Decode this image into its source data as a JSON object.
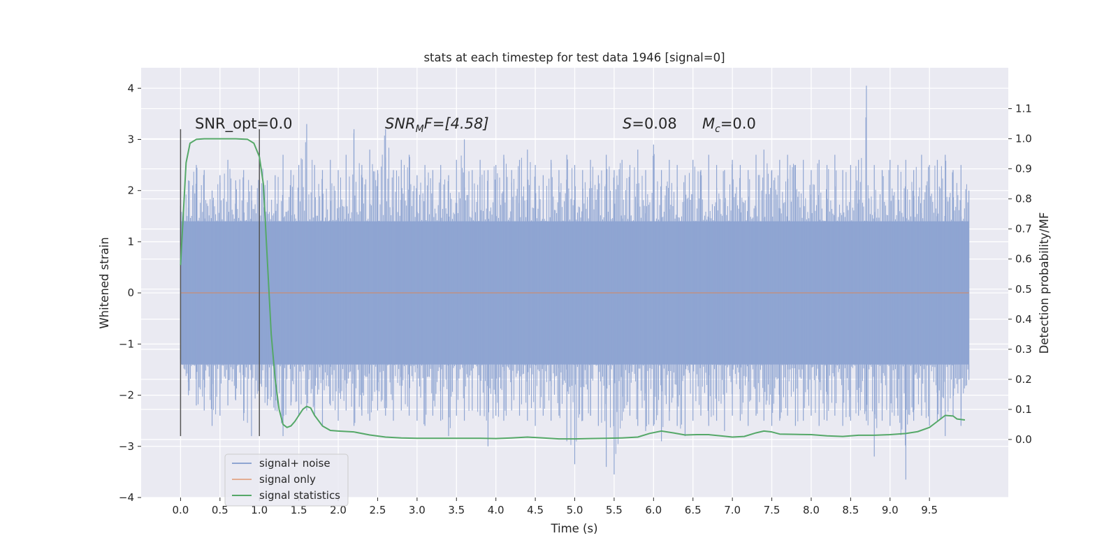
{
  "chart_data": {
    "type": "line",
    "title": "stats at each timestep for test data 1946 [signal=0]",
    "xlabel": "Time (s)",
    "ylabel": "Whitened strain",
    "ylabel_right": "Detection probability/MF",
    "xlim": [
      -0.5,
      10.5
    ],
    "ylim": [
      -4.0,
      4.4
    ],
    "ylim_right": [
      -0.193,
      1.236
    ],
    "x_ticks": [
      "0.0",
      "0.5",
      "1.0",
      "1.5",
      "2.0",
      "2.5",
      "3.0",
      "3.5",
      "4.0",
      "4.5",
      "5.0",
      "5.5",
      "6.0",
      "6.5",
      "7.0",
      "7.5",
      "8.0",
      "8.5",
      "9.0",
      "9.5"
    ],
    "y_ticks": [
      "4",
      "3",
      "2",
      "1",
      "0",
      "−1",
      "−2",
      "−3",
      "−4"
    ],
    "y_ticks_right": [
      "1.1",
      "1.0",
      "0.9",
      "0.8",
      "0.7",
      "0.6",
      "0.5",
      "0.4",
      "0.3",
      "0.2",
      "0.1",
      "0.0"
    ],
    "grid": true,
    "legend_position": "lower-left",
    "annotations": {
      "snr_opt": "SNR_opt=0.0",
      "snr_mf_main": "SNR",
      "snr_mf_sub": "M",
      "snr_mf_rest": "F=[4.58]",
      "s_main": "S",
      "s_rest": "=0.08",
      "mc_main": "M",
      "mc_sub": "c",
      "mc_rest": "=0.0"
    },
    "window_markers": [
      0.0,
      1.0
    ],
    "series": [
      {
        "name": "signal+ noise",
        "color": "#8fa5d2",
        "noise_band": [
          -1.4,
          1.4
        ],
        "x": [
          0.0,
          0.1,
          0.2,
          0.3,
          0.4,
          0.5,
          0.6,
          0.7,
          0.8,
          0.9,
          1.0,
          1.1,
          1.2,
          1.3,
          1.4,
          1.5,
          1.6,
          1.7,
          1.8,
          1.9,
          2.0,
          2.1,
          2.2,
          2.3,
          2.4,
          2.5,
          2.6,
          2.7,
          2.8,
          2.9,
          3.0,
          3.1,
          3.2,
          3.3,
          3.4,
          3.5,
          3.6,
          3.7,
          3.8,
          3.9,
          4.0,
          4.1,
          4.2,
          4.3,
          4.4,
          4.5,
          4.6,
          4.7,
          4.8,
          4.9,
          5.0,
          5.1,
          5.2,
          5.3,
          5.4,
          5.5,
          5.6,
          5.7,
          5.8,
          5.9,
          6.0,
          6.1,
          6.2,
          6.3,
          6.4,
          6.5,
          6.6,
          6.7,
          6.8,
          6.9,
          7.0,
          7.1,
          7.2,
          7.3,
          7.4,
          7.5,
          7.6,
          7.7,
          7.8,
          7.9,
          8.0,
          8.1,
          8.2,
          8.3,
          8.4,
          8.5,
          8.6,
          8.7,
          8.8,
          8.9,
          9.0,
          9.1,
          9.2,
          9.3,
          9.4,
          9.5,
          9.6,
          9.7,
          9.8,
          9.9,
          10.0
        ],
        "upper": [
          1.7,
          2.2,
          2.5,
          2.4,
          2.0,
          2.3,
          2.6,
          2.2,
          2.4,
          2.1,
          2.9,
          2.2,
          2.3,
          2.7,
          2.4,
          2.5,
          3.3,
          2.5,
          2.4,
          2.6,
          2.4,
          2.7,
          3.2,
          2.5,
          2.8,
          2.4,
          3.2,
          2.4,
          2.6,
          2.7,
          2.3,
          2.5,
          2.4,
          2.5,
          2.3,
          2.6,
          3.0,
          2.4,
          2.6,
          2.4,
          2.5,
          2.7,
          2.4,
          2.6,
          2.8,
          2.5,
          2.3,
          2.6,
          2.4,
          2.7,
          2.5,
          2.4,
          2.6,
          2.3,
          2.7,
          2.4,
          2.6,
          2.5,
          2.8,
          2.4,
          2.9,
          2.4,
          2.6,
          2.5,
          2.3,
          2.6,
          2.4,
          2.7,
          2.5,
          2.4,
          2.6,
          2.5,
          2.4,
          2.7,
          2.8,
          2.4,
          2.6,
          2.7,
          2.5,
          2.6,
          2.4,
          2.6,
          2.5,
          2.7,
          2.4,
          2.5,
          2.6,
          4.05,
          2.5,
          2.4,
          2.6,
          2.5,
          2.6,
          2.4,
          2.7,
          2.5,
          2.6,
          2.7,
          2.4,
          2.5,
          2.0
        ],
        "lower": [
          -1.3,
          -2.0,
          -2.2,
          -2.3,
          -2.6,
          -2.4,
          -2.2,
          -2.1,
          -2.5,
          -2.8,
          -2.3,
          -2.2,
          -2.3,
          -2.8,
          -2.2,
          -2.4,
          -2.3,
          -2.4,
          -2.6,
          -2.2,
          -2.5,
          -2.3,
          -2.6,
          -2.4,
          -2.5,
          -2.3,
          -2.4,
          -2.5,
          -2.3,
          -2.4,
          -2.5,
          -2.6,
          -2.4,
          -2.5,
          -2.8,
          -2.4,
          -2.5,
          -2.3,
          -2.4,
          -3.0,
          -2.4,
          -2.5,
          -2.3,
          -2.4,
          -2.5,
          -2.6,
          -2.4,
          -2.5,
          -2.4,
          -2.9,
          -3.35,
          -2.5,
          -2.4,
          -2.6,
          -3.4,
          -3.55,
          -2.5,
          -2.4,
          -2.6,
          -2.7,
          -2.6,
          -2.9,
          -2.5,
          -2.6,
          -2.8,
          -2.5,
          -2.4,
          -2.6,
          -2.5,
          -2.7,
          -2.4,
          -2.5,
          -2.6,
          -2.4,
          -2.5,
          -2.6,
          -2.5,
          -2.4,
          -2.6,
          -2.5,
          -2.4,
          -2.6,
          -2.5,
          -2.4,
          -2.6,
          -2.5,
          -2.4,
          -2.5,
          -3.2,
          -2.5,
          -2.6,
          -2.4,
          -3.65,
          -2.5,
          -2.4,
          -2.6,
          -2.5,
          -2.8,
          -2.4,
          -2.6,
          -1.7
        ]
      },
      {
        "name": "signal only",
        "color": "#dd8452",
        "x": [
          0.0,
          10.0
        ],
        "y": [
          0.0,
          0.0
        ]
      },
      {
        "name": "signal statistics",
        "color": "#55a868",
        "axis": "right",
        "x": [
          0.0,
          0.07,
          0.12,
          0.2,
          0.3,
          0.5,
          0.7,
          0.85,
          0.93,
          1.0,
          1.05,
          1.1,
          1.15,
          1.2,
          1.25,
          1.3,
          1.35,
          1.4,
          1.45,
          1.5,
          1.55,
          1.6,
          1.65,
          1.7,
          1.8,
          1.9,
          2.0,
          2.2,
          2.4,
          2.6,
          2.8,
          3.0,
          3.2,
          3.5,
          3.8,
          4.0,
          4.2,
          4.4,
          4.6,
          4.8,
          5.0,
          5.2,
          5.4,
          5.6,
          5.8,
          5.95,
          6.1,
          6.25,
          6.4,
          6.55,
          6.7,
          6.85,
          7.0,
          7.15,
          7.3,
          7.4,
          7.5,
          7.6,
          7.8,
          8.0,
          8.2,
          8.4,
          8.6,
          8.8,
          9.0,
          9.2,
          9.35,
          9.5,
          9.6,
          9.7,
          9.8,
          9.85,
          9.95
        ],
        "y": [
          0.58,
          0.92,
          0.985,
          0.998,
          1.0,
          1.0,
          1.0,
          0.998,
          0.985,
          0.94,
          0.85,
          0.6,
          0.35,
          0.2,
          0.1,
          0.05,
          0.04,
          0.045,
          0.06,
          0.08,
          0.1,
          0.11,
          0.105,
          0.08,
          0.045,
          0.03,
          0.028,
          0.025,
          0.015,
          0.008,
          0.005,
          0.004,
          0.004,
          0.004,
          0.004,
          0.003,
          0.005,
          0.008,
          0.005,
          0.002,
          0.002,
          0.003,
          0.004,
          0.005,
          0.008,
          0.02,
          0.028,
          0.022,
          0.015,
          0.016,
          0.016,
          0.012,
          0.008,
          0.01,
          0.022,
          0.028,
          0.025,
          0.018,
          0.017,
          0.016,
          0.012,
          0.01,
          0.014,
          0.014,
          0.016,
          0.02,
          0.026,
          0.04,
          0.06,
          0.08,
          0.078,
          0.068,
          0.065
        ]
      }
    ]
  }
}
